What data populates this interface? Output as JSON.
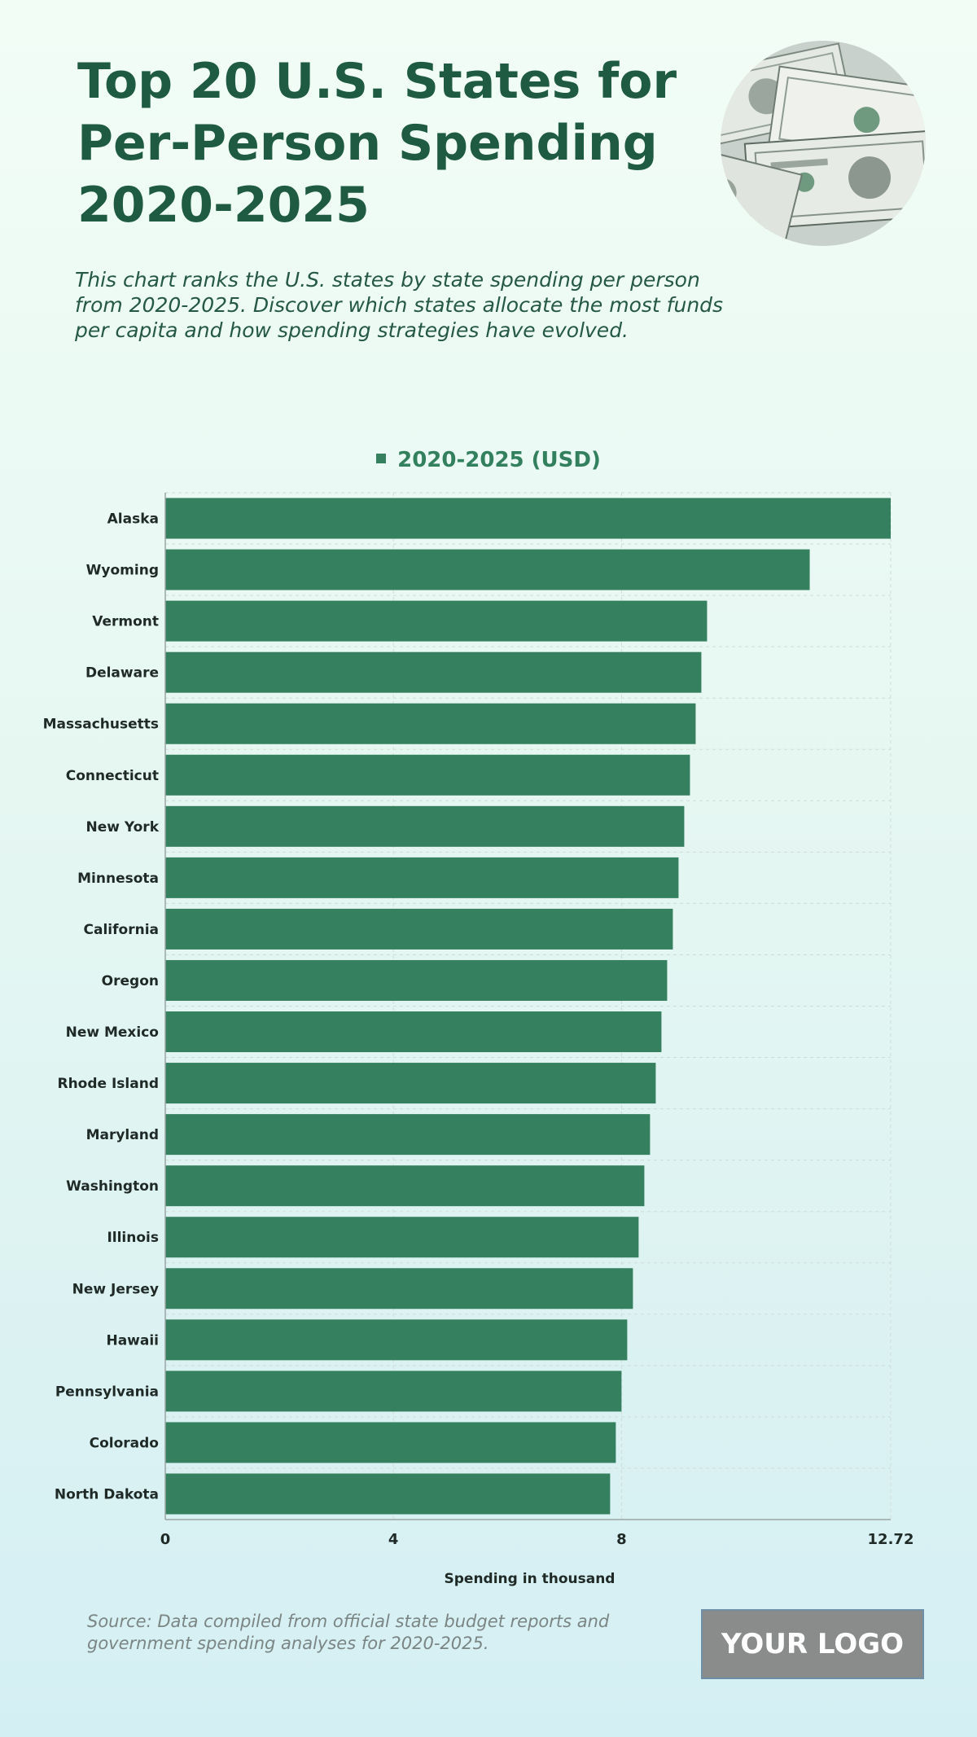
{
  "header": {
    "title": "Top 20 U.S. States for Per-Person Spending 2020-2025",
    "subtitle": "This chart ranks the U.S. states by state spending per person from 2020-2025. Discover which states allocate the most funds per capita and how spending strategies have evolved."
  },
  "photo": {
    "icon": "dollar-bills-photo"
  },
  "colors": {
    "bar": "#34805f",
    "title": "#1f5a42",
    "grid": "#cfdcd8",
    "axis": "#9aa6a3"
  },
  "chart_data": {
    "type": "bar",
    "orientation": "horizontal",
    "legend_position": "top-center",
    "grid": true,
    "series": [
      {
        "name": "2020-2025 (USD)",
        "values": [
          12.72,
          11.3,
          9.5,
          9.4,
          9.3,
          9.2,
          9.1,
          9.0,
          8.9,
          8.8,
          8.7,
          8.6,
          8.5,
          8.4,
          8.3,
          8.2,
          8.1,
          8.0,
          7.9,
          7.8
        ]
      }
    ],
    "categories": [
      "Alaska",
      "Wyoming",
      "Vermont",
      "Delaware",
      "Massachusetts",
      "Connecticut",
      "New York",
      "Minnesota",
      "California",
      "Oregon",
      "New Mexico",
      "Rhode Island",
      "Maryland",
      "Washington",
      "Illinois",
      "New Jersey",
      "Hawaii",
      "Pennsylvania",
      "Colorado",
      "North Dakota"
    ],
    "xlabel": "Spending in thousand",
    "xlim": [
      0,
      12.72
    ],
    "xticks": [
      "0",
      "4",
      "8",
      "12.72"
    ]
  },
  "footer": {
    "source": "Source: Data compiled from official state budget reports and government spending analyses for 2020-2025.",
    "logo": "YOUR LOGO"
  }
}
